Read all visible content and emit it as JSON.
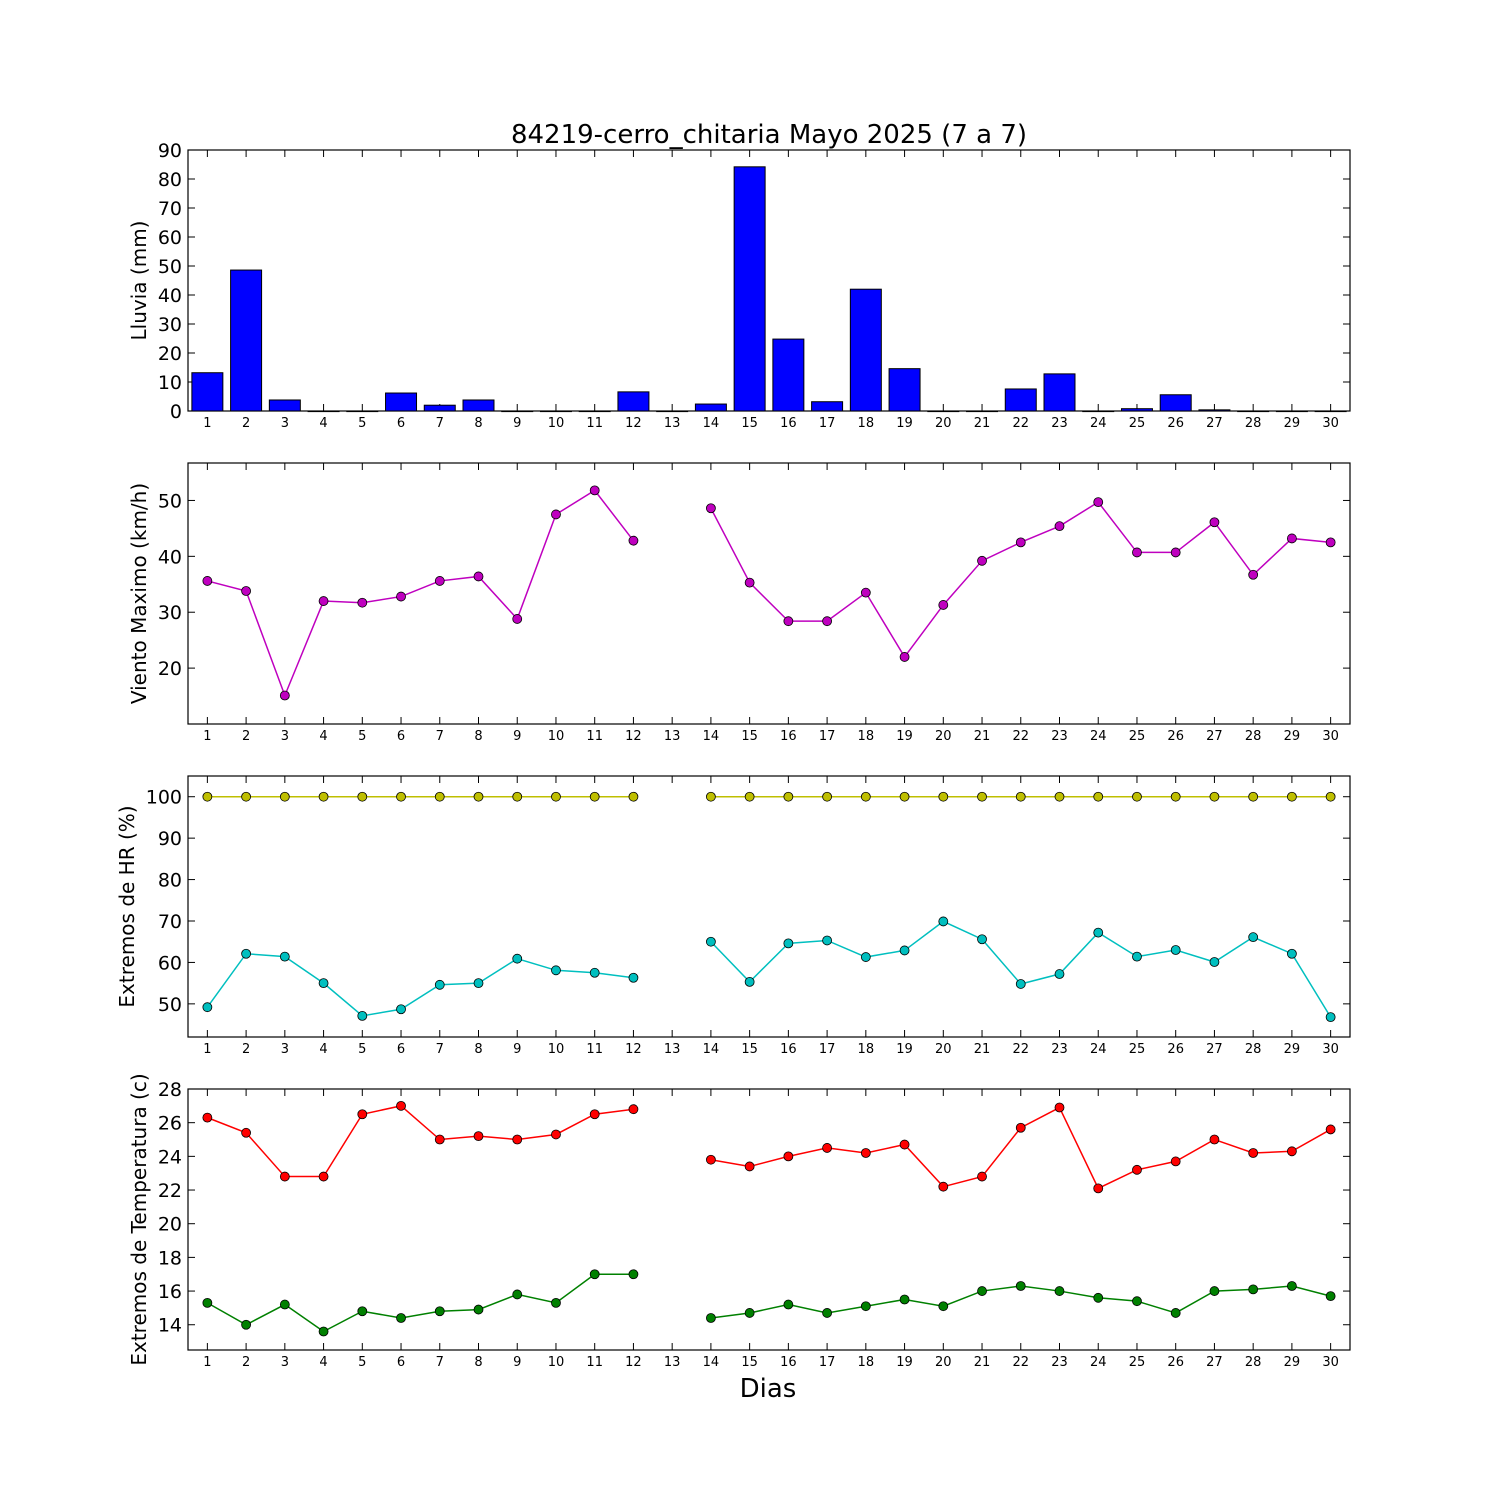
{
  "title": "84219-cerro_chitaria Mayo 2025  (7 a 7)",
  "xlabel": "Dias",
  "colors": {
    "rain": "#0000ff",
    "wind": "#bf00bf",
    "hr_max": "#bfbf00",
    "hr_min": "#00bfbf",
    "temp_max": "#ff0000",
    "temp_min": "#008000"
  },
  "chart_data": [
    {
      "type": "bar",
      "ylabel": "Lluvia (mm)",
      "ylim": [
        0,
        90
      ],
      "yticks": [
        0,
        10,
        20,
        30,
        40,
        50,
        60,
        70,
        80,
        90
      ],
      "categories": [
        "1",
        "2",
        "3",
        "4",
        "5",
        "6",
        "7",
        "8",
        "9",
        "10",
        "11",
        "12",
        "13",
        "14",
        "15",
        "16",
        "17",
        "18",
        "19",
        "20",
        "21",
        "22",
        "23",
        "24",
        "25",
        "26",
        "27",
        "28",
        "29",
        "30"
      ],
      "values": [
        13.2,
        48.6,
        3.8,
        0,
        0,
        6.2,
        2.0,
        3.8,
        0,
        0,
        0,
        6.6,
        0,
        2.4,
        84.2,
        24.8,
        3.2,
        42.0,
        14.6,
        0,
        0,
        7.6,
        12.8,
        0,
        0.8,
        5.6,
        0.4,
        0,
        0,
        0
      ]
    },
    {
      "type": "line",
      "ylabel": "Viento Maximo (km/h)",
      "ylim": [
        10,
        56.7
      ],
      "yticks": [
        20,
        30,
        40,
        50
      ],
      "x": [
        1,
        2,
        3,
        4,
        5,
        6,
        7,
        8,
        9,
        10,
        11,
        12,
        13,
        14,
        15,
        16,
        17,
        18,
        19,
        20,
        21,
        22,
        23,
        24,
        25,
        26,
        27,
        28,
        29,
        30
      ],
      "series": [
        {
          "values": [
            35.6,
            33.8,
            15.1,
            32.0,
            31.7,
            32.8,
            35.6,
            36.4,
            28.8,
            47.5,
            51.8,
            42.8,
            null,
            48.6,
            35.3,
            28.4,
            28.4,
            33.5,
            22.0,
            31.3,
            39.2,
            42.5,
            45.4,
            49.7,
            40.7,
            40.7,
            46.1,
            36.7,
            43.2,
            42.5
          ]
        }
      ]
    },
    {
      "type": "line",
      "ylabel": "Extremos de HR (%)",
      "ylim": [
        42,
        105
      ],
      "yticks": [
        50,
        60,
        70,
        80,
        90,
        100
      ],
      "x": [
        1,
        2,
        3,
        4,
        5,
        6,
        7,
        8,
        9,
        10,
        11,
        12,
        13,
        14,
        15,
        16,
        17,
        18,
        19,
        20,
        21,
        22,
        23,
        24,
        25,
        26,
        27,
        28,
        29,
        30
      ],
      "series": [
        {
          "values": [
            100,
            100,
            100,
            100,
            100,
            100,
            100,
            100,
            100,
            100,
            100,
            100,
            null,
            100,
            100,
            100,
            100,
            100,
            100,
            100,
            100,
            100,
            100,
            100,
            100,
            100,
            100,
            100,
            100,
            100
          ]
        },
        {
          "values": [
            49.2,
            62.1,
            61.4,
            55.0,
            47.1,
            48.7,
            54.6,
            55.0,
            60.9,
            58.1,
            57.5,
            56.3,
            null,
            65.0,
            55.3,
            64.6,
            65.3,
            61.3,
            62.9,
            69.9,
            65.6,
            54.8,
            57.2,
            67.2,
            61.4,
            63.0,
            60.1,
            66.1,
            62.1,
            46.8
          ]
        }
      ]
    },
    {
      "type": "line",
      "ylabel": "Extremos de Temperatura (c)",
      "ylim": [
        12.5,
        28
      ],
      "yticks": [
        14,
        16,
        18,
        20,
        22,
        24,
        26,
        28
      ],
      "x": [
        1,
        2,
        3,
        4,
        5,
        6,
        7,
        8,
        9,
        10,
        11,
        12,
        13,
        14,
        15,
        16,
        17,
        18,
        19,
        20,
        21,
        22,
        23,
        24,
        25,
        26,
        27,
        28,
        29,
        30
      ],
      "series": [
        {
          "values": [
            26.3,
            25.4,
            22.8,
            22.8,
            26.5,
            27.0,
            25.0,
            25.2,
            25.0,
            25.3,
            26.5,
            26.8,
            null,
            23.8,
            23.4,
            24.0,
            24.5,
            24.2,
            24.7,
            22.2,
            22.8,
            25.7,
            26.9,
            22.1,
            23.2,
            23.7,
            25.0,
            24.2,
            24.3,
            25.6
          ]
        },
        {
          "values": [
            15.3,
            14.0,
            15.2,
            13.6,
            14.8,
            14.4,
            14.8,
            14.9,
            15.8,
            15.3,
            17.0,
            17.0,
            null,
            14.4,
            14.7,
            15.2,
            14.7,
            15.1,
            15.5,
            15.1,
            16.0,
            16.3,
            16.0,
            15.6,
            15.4,
            14.7,
            16.0,
            16.1,
            16.3,
            15.7
          ]
        }
      ]
    }
  ]
}
